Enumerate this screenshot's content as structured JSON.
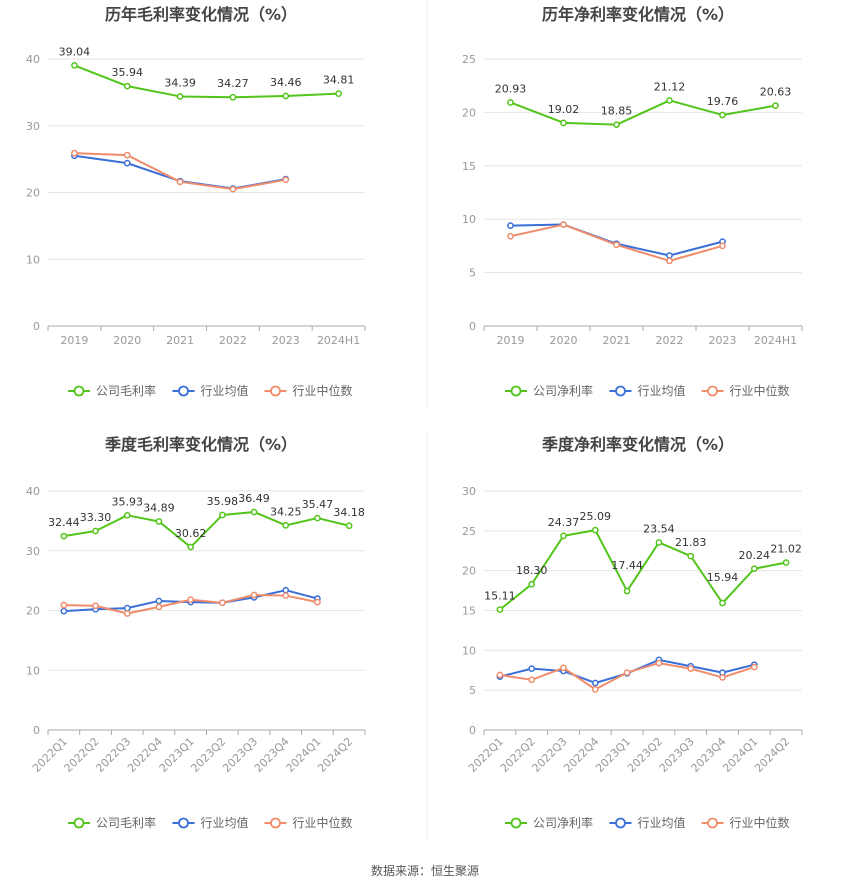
{
  "colors": {
    "company": "#52c41a",
    "avg": "#3a6fd8",
    "median": "#f08c6b"
  },
  "chart_data": [
    {
      "type": "line",
      "title": "历年毛利率变化情况（%）",
      "categories": [
        "2019",
        "2020",
        "2021",
        "2022",
        "2023",
        "2024H1"
      ],
      "ylim": [
        0,
        40
      ],
      "yticks": [
        0,
        10,
        20,
        30,
        40
      ],
      "grid": true,
      "legend_position": "bottom",
      "series": [
        {
          "name": "公司毛利率",
          "key": "company",
          "values": [
            39.04,
            35.94,
            34.39,
            34.27,
            34.46,
            34.81
          ],
          "labels": [
            "39.04",
            "35.94",
            "34.39",
            "34.27",
            "34.46",
            "34.81"
          ]
        },
        {
          "name": "行业均值",
          "key": "avg",
          "values": [
            25.5,
            24.4,
            21.7,
            20.6,
            22.0,
            null
          ]
        },
        {
          "name": "行业中位数",
          "key": "median",
          "values": [
            25.9,
            25.6,
            21.6,
            20.5,
            21.9,
            null
          ]
        }
      ]
    },
    {
      "type": "line",
      "title": "历年净利率变化情况（%）",
      "categories": [
        "2019",
        "2020",
        "2021",
        "2022",
        "2023",
        "2024H1"
      ],
      "ylim": [
        0,
        25
      ],
      "yticks": [
        0,
        5,
        10,
        15,
        20,
        25
      ],
      "grid": true,
      "legend_position": "bottom",
      "series": [
        {
          "name": "公司净利率",
          "key": "company",
          "values": [
            20.93,
            19.02,
            18.85,
            21.12,
            19.76,
            20.63
          ],
          "labels": [
            "20.93",
            "19.02",
            "18.85",
            "21.12",
            "19.76",
            "20.63"
          ]
        },
        {
          "name": "行业均值",
          "key": "avg",
          "values": [
            9.4,
            9.5,
            7.7,
            6.6,
            7.9,
            null
          ]
        },
        {
          "name": "行业中位数",
          "key": "median",
          "values": [
            8.4,
            9.5,
            7.6,
            6.1,
            7.5,
            null
          ]
        }
      ]
    },
    {
      "type": "line",
      "title": "季度毛利率变化情况（%）",
      "categories": [
        "2022Q1",
        "2022Q2",
        "2022Q3",
        "2022Q4",
        "2023Q1",
        "2023Q2",
        "2023Q3",
        "2023Q4",
        "2024Q1",
        "2024Q2"
      ],
      "ylim": [
        0,
        40
      ],
      "yticks": [
        0,
        10,
        20,
        30,
        40
      ],
      "grid": true,
      "legend_position": "bottom",
      "series": [
        {
          "name": "公司毛利率",
          "key": "company",
          "values": [
            32.44,
            33.3,
            35.93,
            34.89,
            30.62,
            35.98,
            36.49,
            34.25,
            35.47,
            34.18
          ],
          "labels": [
            "32.44",
            "33.30",
            "35.93",
            "34.89",
            "30.62",
            "35.98",
            "36.49",
            "34.25",
            "35.47",
            "34.18"
          ]
        },
        {
          "name": "行业均值",
          "key": "avg",
          "values": [
            19.9,
            20.2,
            20.4,
            21.6,
            21.4,
            21.3,
            22.2,
            23.4,
            22.0,
            null
          ]
        },
        {
          "name": "行业中位数",
          "key": "median",
          "values": [
            20.9,
            20.8,
            19.5,
            20.6,
            21.8,
            21.3,
            22.6,
            22.5,
            21.4,
            null
          ]
        }
      ]
    },
    {
      "type": "line",
      "title": "季度净利率变化情况（%）",
      "categories": [
        "2022Q1",
        "2022Q2",
        "2022Q3",
        "2022Q4",
        "2023Q1",
        "2023Q2",
        "2023Q3",
        "2023Q4",
        "2024Q1",
        "2024Q2"
      ],
      "ylim": [
        0,
        30
      ],
      "yticks": [
        0,
        5,
        10,
        15,
        20,
        25,
        30
      ],
      "grid": true,
      "legend_position": "bottom",
      "series": [
        {
          "name": "公司净利率",
          "key": "company",
          "values": [
            15.11,
            18.3,
            24.37,
            25.09,
            17.44,
            23.54,
            21.83,
            15.94,
            20.24,
            21.02
          ],
          "labels": [
            "15.11",
            "18.30",
            "24.37",
            "25.09",
            "17.44",
            "23.54",
            "21.83",
            "15.94",
            "20.24",
            "21.02"
          ]
        },
        {
          "name": "行业均值",
          "key": "avg",
          "values": [
            6.7,
            7.7,
            7.4,
            5.9,
            7.1,
            8.8,
            8.0,
            7.2,
            8.2,
            null
          ]
        },
        {
          "name": "行业中位数",
          "key": "median",
          "values": [
            6.9,
            6.3,
            7.8,
            5.1,
            7.2,
            8.4,
            7.7,
            6.6,
            7.9,
            null
          ]
        }
      ]
    }
  ],
  "source": "数据来源：恒生聚源"
}
